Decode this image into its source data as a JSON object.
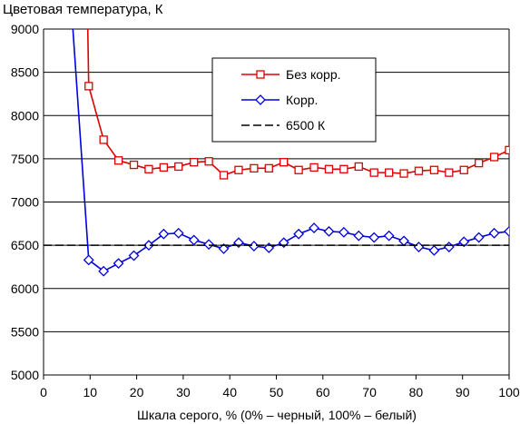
{
  "chart_data": {
    "type": "line",
    "title": "Цветовая температура, К",
    "xlabel": "Шкала серого, % (0% – черный, 100% – белый)",
    "ylabel": "",
    "xlim": [
      0,
      100
    ],
    "ylim": [
      5000,
      9000
    ],
    "x_ticks": [
      "0",
      "10",
      "20",
      "30",
      "40",
      "50",
      "60",
      "70",
      "80",
      "90",
      "100"
    ],
    "y_ticks": [
      "5000",
      "5500",
      "6000",
      "6500",
      "7000",
      "7500",
      "8000",
      "8500",
      "9000"
    ],
    "grid": "horizontal",
    "legend_position": "top-right",
    "series": [
      {
        "name": "Без корр.",
        "color": "#dd0000",
        "marker": "square",
        "line_start": {
          "x": 9.5,
          "y": 9000
        },
        "x": [
          9.7,
          12.9,
          16.1,
          19.4,
          22.6,
          25.8,
          29.0,
          32.3,
          35.5,
          38.7,
          41.9,
          45.2,
          48.4,
          51.6,
          54.8,
          58.1,
          61.3,
          64.5,
          67.7,
          71.0,
          74.2,
          77.4,
          80.6,
          83.9,
          87.1,
          90.3,
          93.5,
          96.8,
          100.0
        ],
        "y": [
          8340,
          7720,
          7480,
          7430,
          7380,
          7400,
          7410,
          7460,
          7470,
          7310,
          7370,
          7390,
          7390,
          7460,
          7370,
          7400,
          7380,
          7380,
          7410,
          7340,
          7340,
          7330,
          7360,
          7370,
          7340,
          7370,
          7450,
          7520,
          7600
        ]
      },
      {
        "name": "Корр.",
        "color": "#0000dd",
        "marker": "diamond",
        "line_start": {
          "x": 6.3,
          "y": 9000
        },
        "x": [
          9.7,
          12.9,
          16.1,
          19.4,
          22.6,
          25.8,
          29.0,
          32.3,
          35.5,
          38.7,
          41.9,
          45.2,
          48.4,
          51.6,
          54.8,
          58.1,
          61.3,
          64.5,
          67.7,
          71.0,
          74.2,
          77.4,
          80.6,
          83.9,
          87.1,
          90.3,
          93.5,
          96.8,
          100.0
        ],
        "y": [
          6330,
          6200,
          6290,
          6380,
          6500,
          6630,
          6640,
          6560,
          6510,
          6460,
          6530,
          6490,
          6470,
          6530,
          6630,
          6700,
          6660,
          6650,
          6610,
          6590,
          6610,
          6550,
          6480,
          6440,
          6480,
          6540,
          6590,
          6640,
          6660
        ]
      },
      {
        "name": "6500 К",
        "color": "#000000",
        "marker": "none",
        "dashed": true,
        "x": [
          0,
          100
        ],
        "y": [
          6500,
          6500
        ]
      }
    ]
  }
}
